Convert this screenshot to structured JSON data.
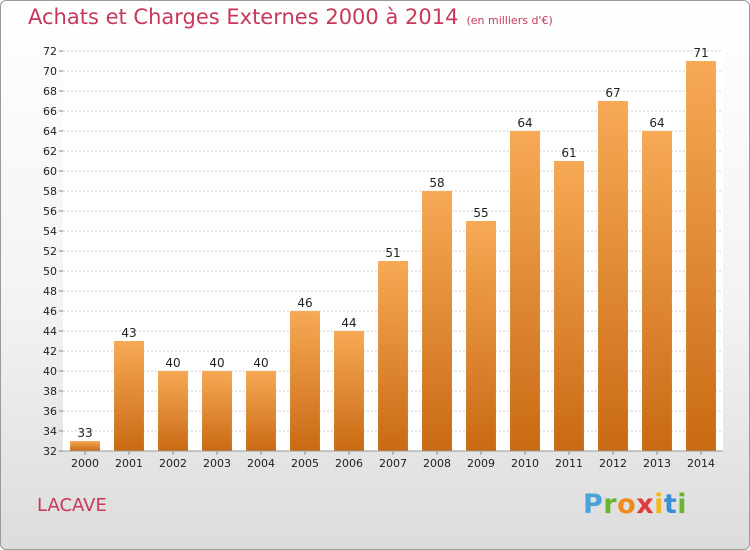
{
  "title": "Achats et Charges Externes 2000 à 2014",
  "unit": "(en milliers d'€)",
  "location": "LACAVE",
  "logo": {
    "letters": [
      "P",
      "r",
      "o",
      "x",
      "i",
      "t",
      "i"
    ],
    "colors": [
      "#4aa3d9",
      "#6bb52f",
      "#f08a1c",
      "#e23a3a",
      "#f0b81c",
      "#3a8fd0",
      "#6bb52f"
    ]
  },
  "colors": {
    "title": "#c8385a",
    "bar_top": "#f7a955",
    "bar_bottom": "#c96a14",
    "grid": "#cccccc",
    "axis_text": "#222222"
  },
  "chart_data": {
    "type": "bar",
    "title": "Achats et Charges Externes 2000 à 2014",
    "subtitle": "(en milliers d'€)",
    "categories": [
      "2000",
      "2001",
      "2002",
      "2003",
      "2004",
      "2005",
      "2006",
      "2007",
      "2008",
      "2009",
      "2010",
      "2011",
      "2012",
      "2013",
      "2014"
    ],
    "values": [
      33,
      43,
      40,
      40,
      40,
      46,
      44,
      51,
      58,
      55,
      64,
      61,
      67,
      64,
      71
    ],
    "xlabel": "",
    "ylabel": "",
    "ylim": [
      32,
      72
    ],
    "yticks": [
      32,
      34,
      36,
      38,
      40,
      42,
      44,
      46,
      48,
      50,
      52,
      54,
      56,
      58,
      60,
      62,
      64,
      66,
      68,
      70,
      72
    ],
    "grid": true,
    "data_labels": true,
    "legend": "none"
  }
}
